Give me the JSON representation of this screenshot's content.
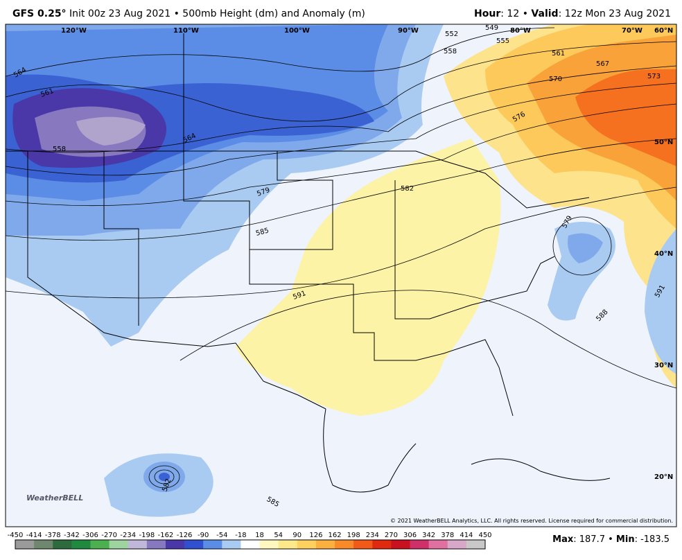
{
  "header": {
    "model": "GFS 0.25°",
    "init": "Init 00z 23 Aug 2021 • 500mb Height (dm) and Anomaly (m)",
    "hour_label": "Hour",
    "hour_value": ": 12 •",
    "valid_label": "Valid",
    "valid_value": ": 12z Mon 23 Aug 2021"
  },
  "map": {
    "longitudes": [
      "120°W",
      "110°W",
      "100°W",
      "90°W",
      "80°W",
      "70°W",
      "60°N"
    ],
    "latitudes": [
      "50°N",
      "40°N",
      "30°N",
      "20°N"
    ],
    "contour_labels": [
      564,
      561,
      558,
      564,
      579,
      585,
      591,
      582,
      552,
      549,
      555,
      558,
      561,
      567,
      570,
      573,
      576,
      579,
      588,
      591,
      582,
      585
    ],
    "logo": "WeatherBELL",
    "copyright": "© 2021 WeatherBELL Analytics, LLC. All rights reserved. License required for commercial distribution."
  },
  "colorbar": {
    "ticks": [
      -450,
      -414,
      -378,
      -342,
      -306,
      -270,
      -234,
      -198,
      -162,
      -126,
      -90,
      -54,
      -18,
      18,
      54,
      90,
      126,
      162,
      198,
      234,
      270,
      306,
      342,
      378,
      414,
      450
    ],
    "colors": [
      "#9a9a9a",
      "#6f876f",
      "#2d6b3f",
      "#1f8a3f",
      "#4caf50",
      "#9fd39f",
      "#c0b8d8",
      "#8878c0",
      "#4a38a8",
      "#3050d0",
      "#5b8de6",
      "#a9cbf2",
      "#ffffff",
      "#fff7c0",
      "#fde98a",
      "#fdd060",
      "#fbb040",
      "#f88a2a",
      "#f25a1a",
      "#e02a10",
      "#c81020",
      "#d0306a",
      "#e070a0",
      "#d8a8c8",
      "#c8c8c8"
    ]
  },
  "footer": {
    "max_label": "Max",
    "max_value": ": 187.7 •",
    "min_label": "Min",
    "min_value": ": -183.5"
  }
}
